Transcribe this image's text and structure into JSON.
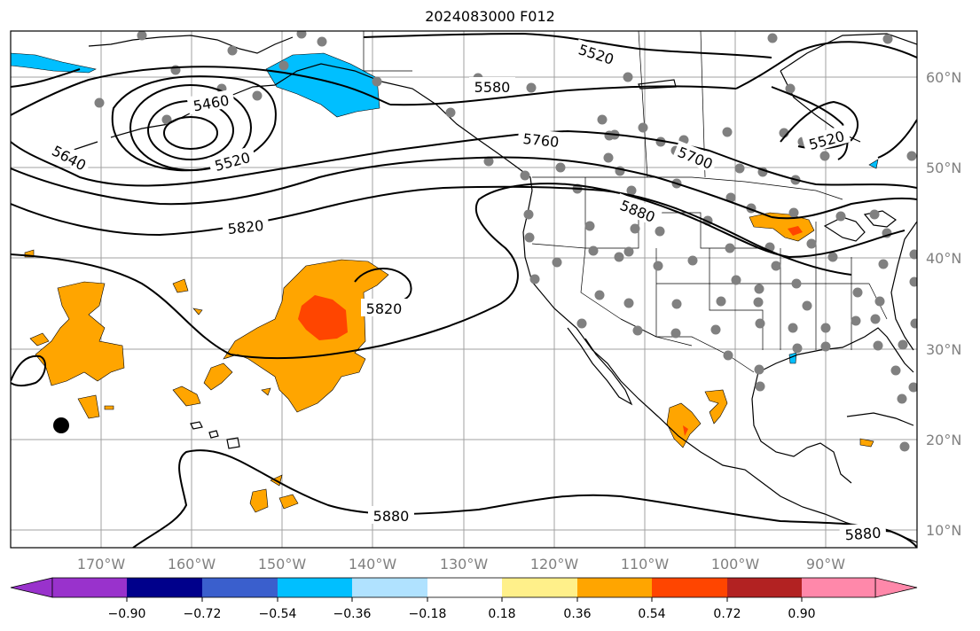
{
  "title": "2024083000 F012",
  "colors": {
    "land_outline": "#000000",
    "gridline": "#a0a0a0",
    "station_dot": "#808080",
    "anomaly_neg_036": "#00bfff",
    "anomaly_pos_036": "#ffa500",
    "anomaly_pos_054": "#ff4500"
  },
  "lat_labels": [
    "60°N",
    "50°N",
    "40°N",
    "30°N",
    "20°N",
    "10°N"
  ],
  "lon_labels": [
    "170°W",
    "160°W",
    "150°W",
    "140°W",
    "130°W",
    "120°W",
    "110°W",
    "100°W",
    "90°W"
  ],
  "contour_labels": [
    "5520",
    "5580",
    "5460",
    "5640",
    "5520",
    "5760",
    "5700",
    "5520",
    "5880",
    "5820",
    "5820",
    "5880",
    "5880"
  ],
  "colorbar": {
    "bins": [
      "#9932cc",
      "#00008b",
      "#3a5fcd",
      "#00bfff",
      "#b0e2ff",
      "#ffffff",
      "#fff08a",
      "#ffa500",
      "#ff4500",
      "#b22222",
      "#ff88aa"
    ],
    "tick_labels": [
      "−0.90",
      "−0.72",
      "−0.54",
      "−0.36",
      "−0.18",
      "0.18",
      "0.36",
      "0.54",
      "0.72",
      "0.90"
    ]
  }
}
